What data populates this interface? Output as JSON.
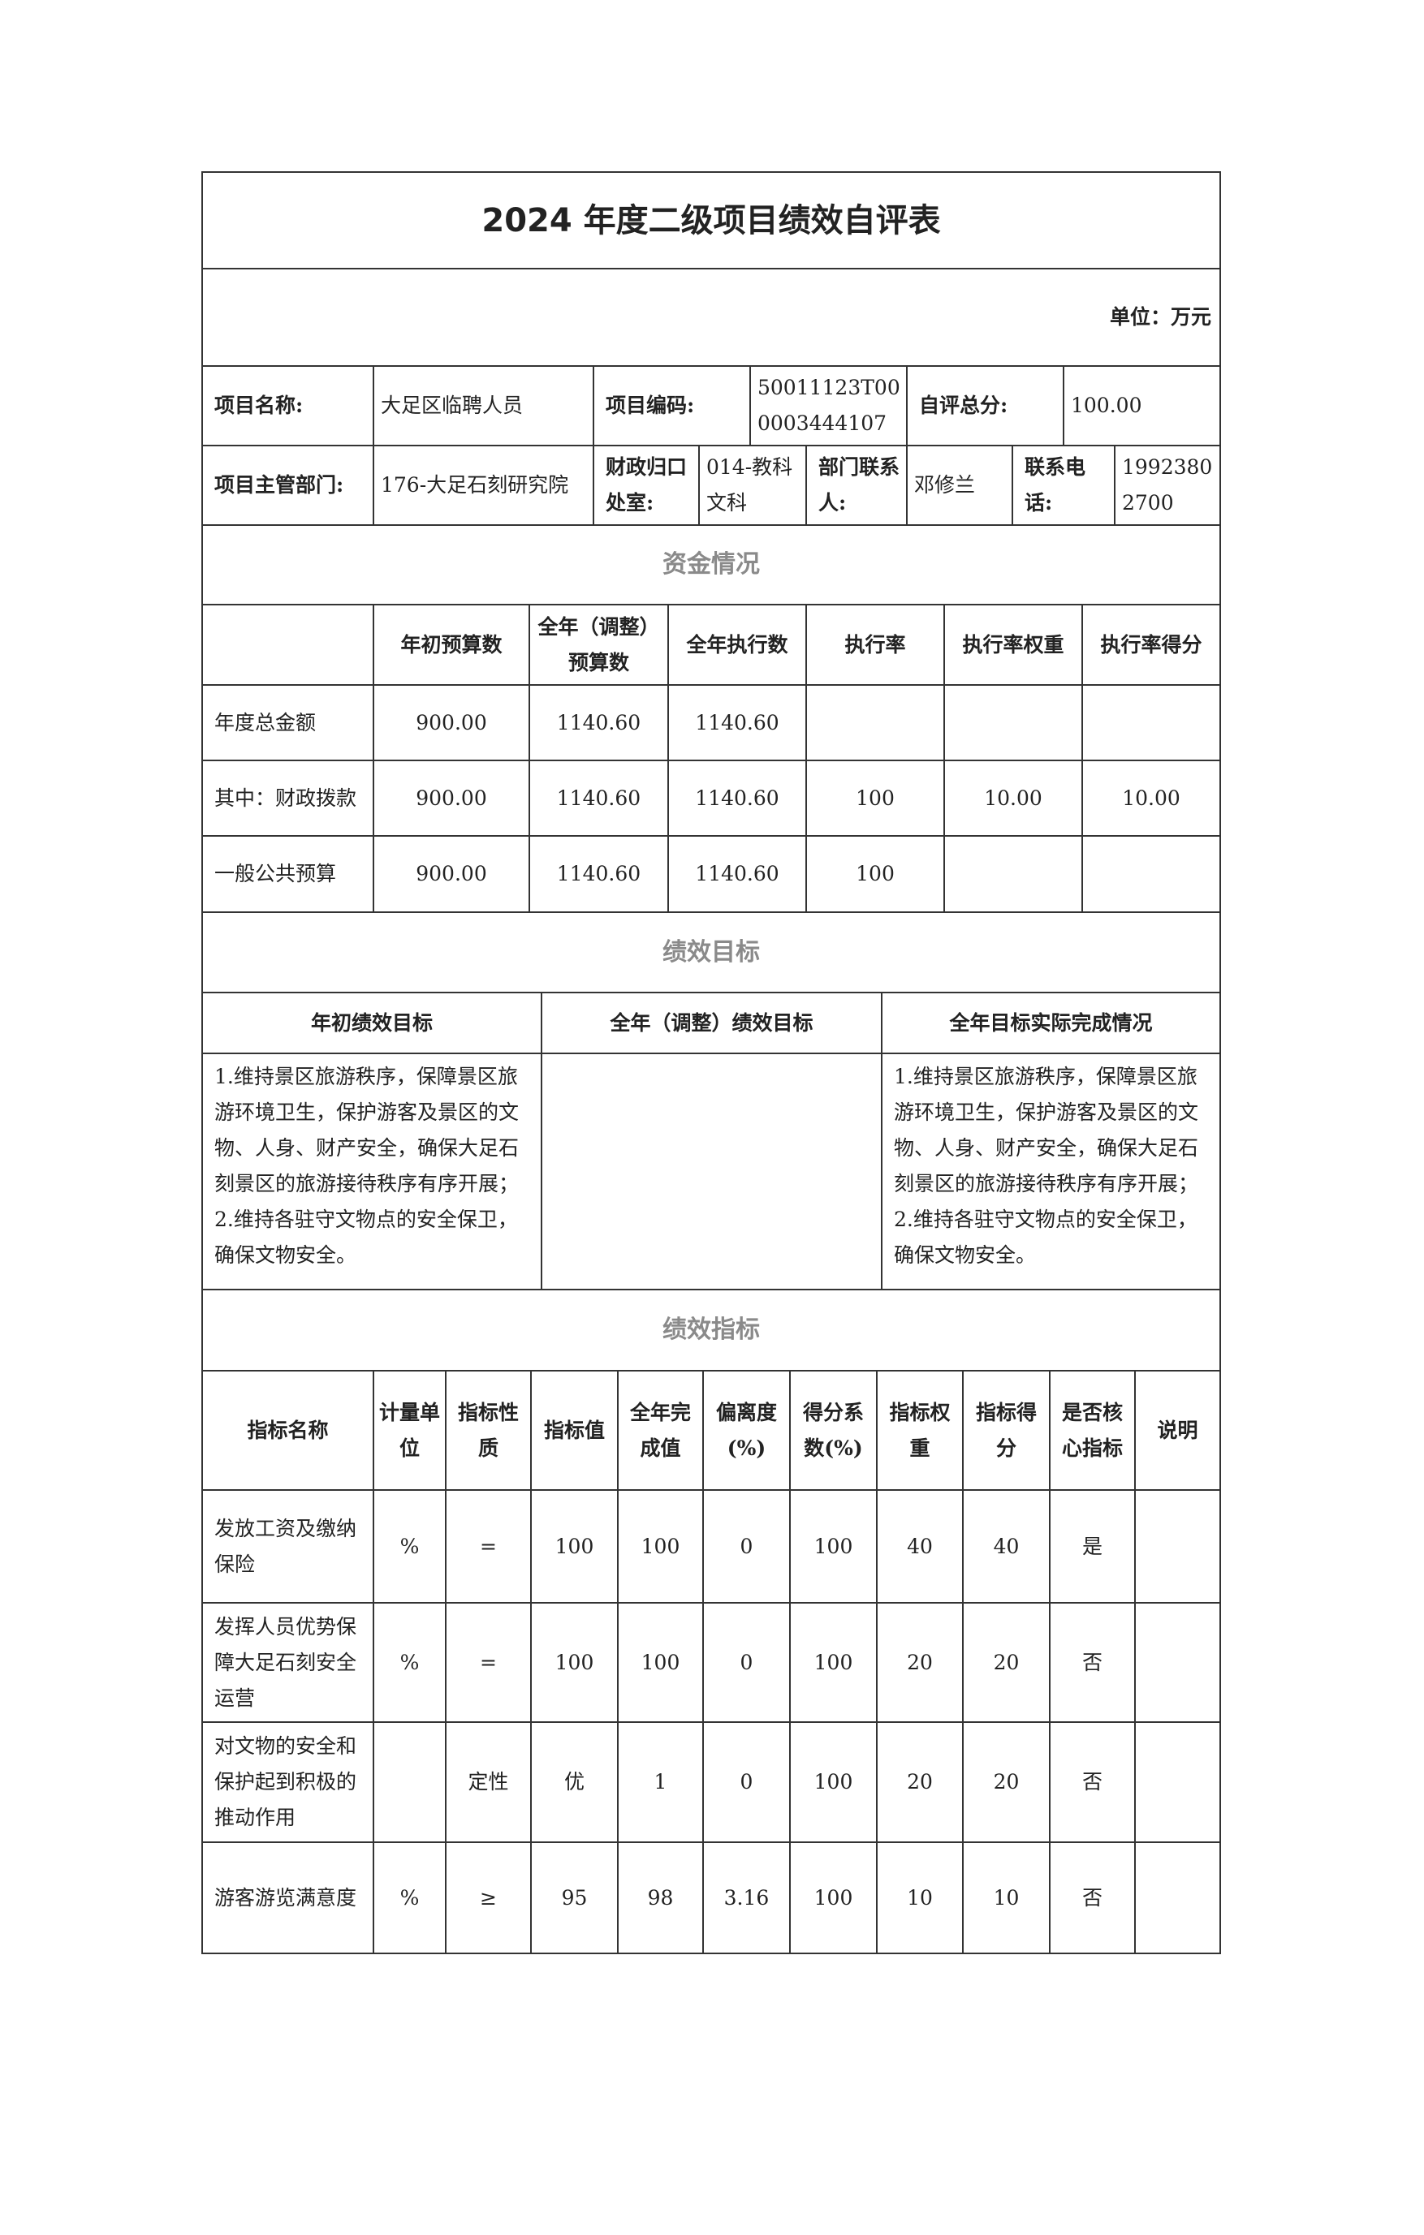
{
  "title": "2024 年度二级项目绩效自评表",
  "unit": "单位：万元",
  "info": {
    "name_label": "项目名称:",
    "name": "大足区临聘人员",
    "code_label": "项目编码:",
    "code": "50011123T000003444107",
    "score_label": "自评总分:",
    "score": "100.00",
    "dept_label": "项目主管部门:",
    "dept": "176-大足石刻研究院",
    "fin_label": "财政归口处室:",
    "fin": "014-教科文科",
    "contact_label": "部门联系人:",
    "contact": "邓修兰",
    "phone_label": "联系电话:",
    "phone": "19923802700"
  },
  "funds": {
    "section": "资金情况",
    "headers": [
      "年初预算数",
      "全年（调整）预算数",
      "全年执行数",
      "执行率",
      "执行率权重",
      "执行率得分"
    ],
    "rows": [
      [
        "年度总金额",
        "900.00",
        "1140.60",
        "1140.60",
        "",
        "",
        ""
      ],
      [
        "其中：财政拨款",
        "900.00",
        "1140.60",
        "1140.60",
        "100",
        "10.00",
        "10.00"
      ],
      [
        "一般公共预算",
        "900.00",
        "1140.60",
        "1140.60",
        "100",
        "",
        ""
      ]
    ]
  },
  "goals": {
    "section": "绩效目标",
    "headers": [
      "年初绩效目标",
      "全年（调整）绩效目标",
      "全年目标实际完成情况"
    ],
    "initial": "1.维持景区旅游秩序，保障景区旅游环境卫生，保护游客及景区的文物、人身、财产安全，确保大足石刻景区的旅游接待秩序有序开展；2.维持各驻守文物点的安全保卫，确保文物安全。",
    "adjusted": "",
    "actual": "1.维持景区旅游秩序，保障景区旅游环境卫生，保护游客及景区的文物、人身、财产安全，确保大足石刻景区的旅游接待秩序有序开展；2.维持各驻守文物点的安全保卫，确保文物安全。"
  },
  "indicators": {
    "section": "绩效指标",
    "headers": [
      "指标名称",
      "计量单位",
      "指标性质",
      "指标值",
      "全年完成值",
      "偏离度(%)",
      "得分系数(%)",
      "指标权重",
      "指标得分",
      "是否核心指标",
      "说明"
    ],
    "rows": [
      [
        "发放工资及缴纳保险",
        "%",
        "=",
        "100",
        "100",
        "0",
        "100",
        "40",
        "40",
        "是",
        ""
      ],
      [
        "发挥人员优势保障大足石刻安全运营",
        "%",
        "=",
        "100",
        "100",
        "0",
        "100",
        "20",
        "20",
        "否",
        ""
      ],
      [
        "对文物的安全和保护起到积极的推动作用",
        "",
        "定性",
        "优",
        "1",
        "0",
        "100",
        "20",
        "20",
        "否",
        ""
      ],
      [
        "游客游览满意度",
        "%",
        "≥",
        "95",
        "98",
        "3.16",
        "100",
        "10",
        "10",
        "否",
        ""
      ]
    ]
  }
}
